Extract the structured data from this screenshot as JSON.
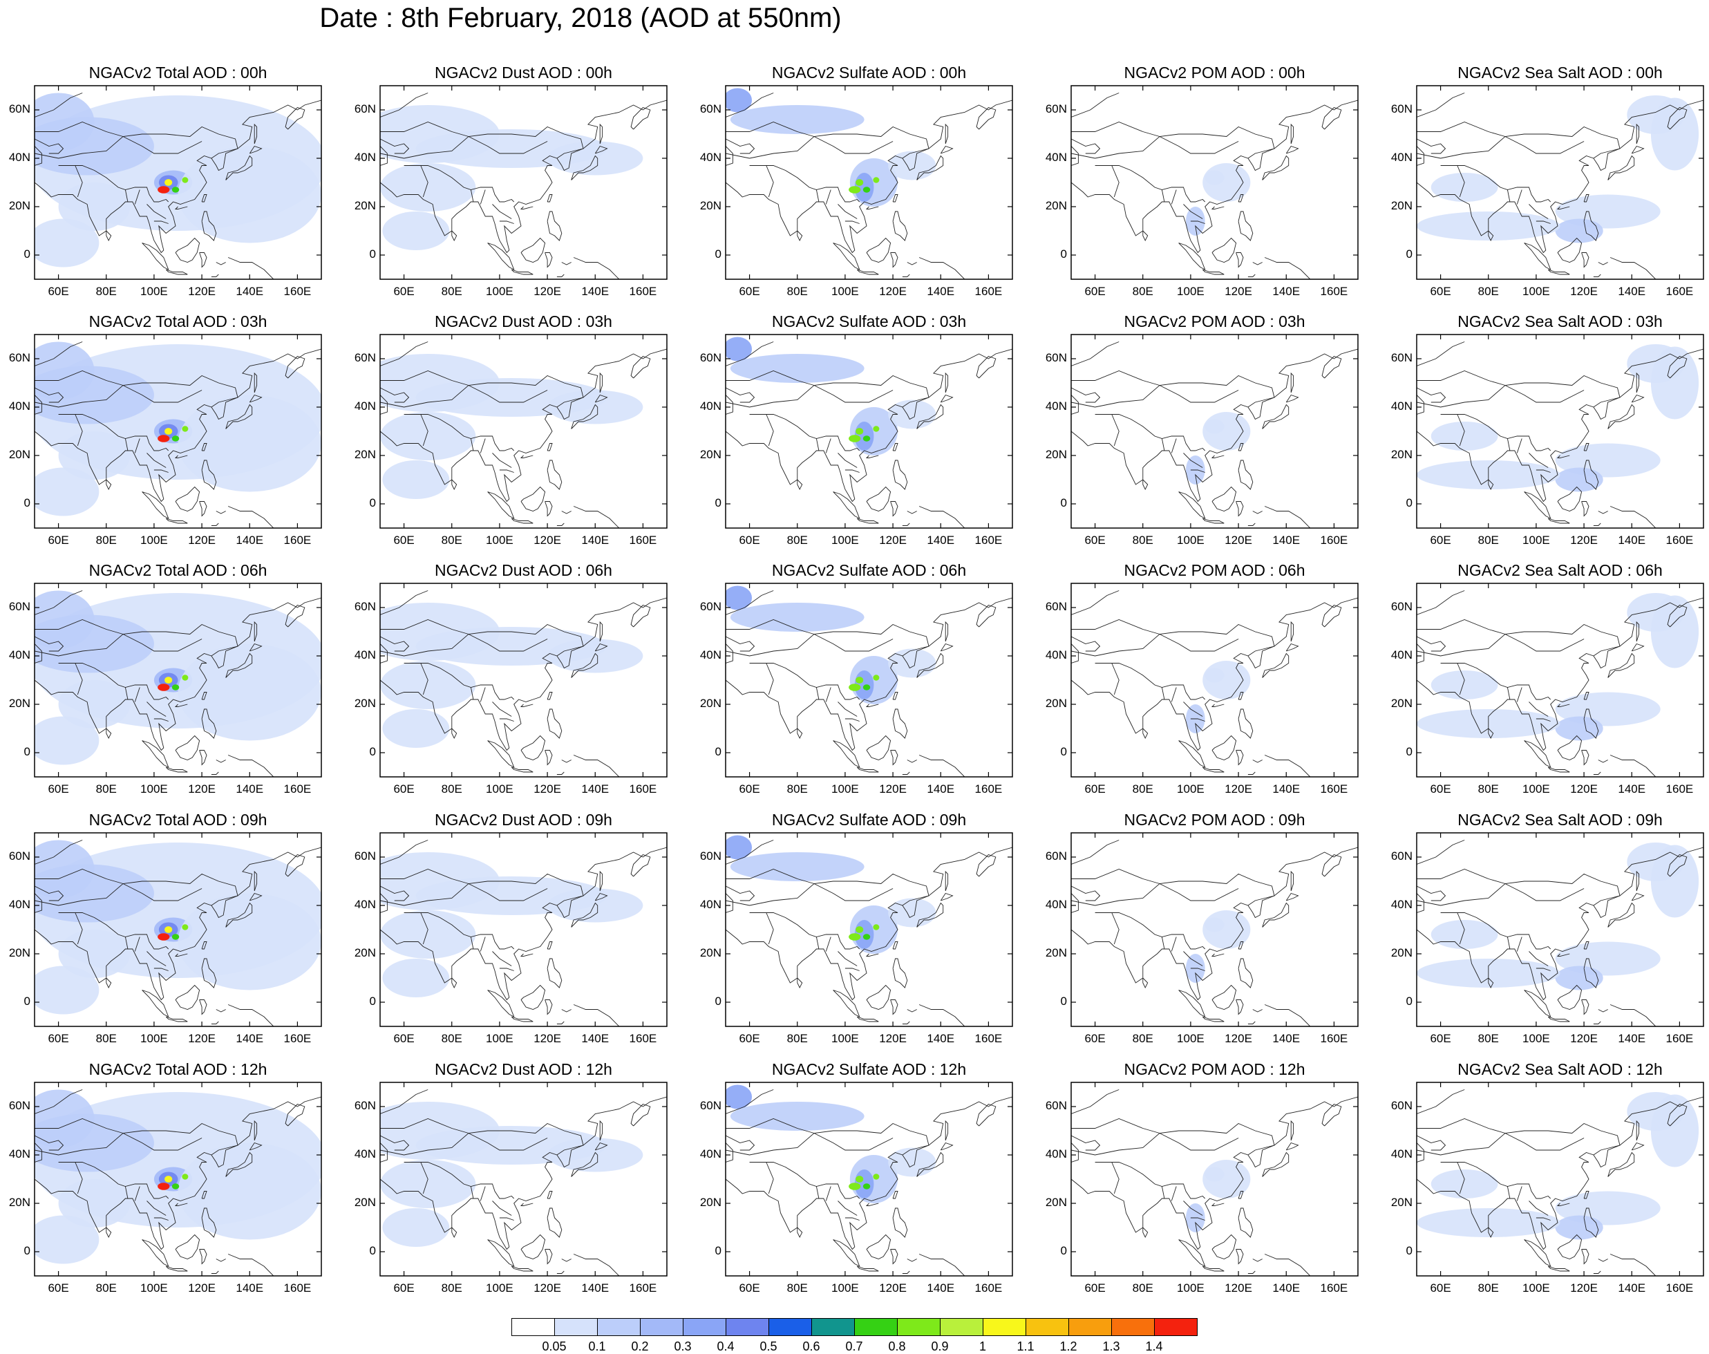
{
  "figure": {
    "title": "Date : 8th February, 2018 (AOD at 550nm)"
  },
  "panels": {
    "rows": [
      {
        "time": "00h",
        "columns": [
          {
            "variable": "total",
            "title": "NGACv2 Total AOD : 00h"
          },
          {
            "variable": "dust",
            "title": "NGACv2 Dust AOD : 00h"
          },
          {
            "variable": "sulfate",
            "title": "NGACv2 Sulfate AOD : 00h"
          },
          {
            "variable": "pom",
            "title": "NGACv2 POM AOD : 00h"
          },
          {
            "variable": "seasalt",
            "title": "NGACv2 Sea Salt AOD : 00h"
          }
        ]
      },
      {
        "time": "03h",
        "columns": [
          {
            "variable": "total",
            "title": "NGACv2 Total AOD : 03h"
          },
          {
            "variable": "dust",
            "title": "NGACv2 Dust AOD : 03h"
          },
          {
            "variable": "sulfate",
            "title": "NGACv2 Sulfate AOD : 03h"
          },
          {
            "variable": "pom",
            "title": "NGACv2 POM AOD : 03h"
          },
          {
            "variable": "seasalt",
            "title": "NGACv2 Sea Salt AOD : 03h"
          }
        ]
      },
      {
        "time": "06h",
        "columns": [
          {
            "variable": "total",
            "title": "NGACv2 Total AOD : 06h"
          },
          {
            "variable": "dust",
            "title": "NGACv2 Dust AOD : 06h"
          },
          {
            "variable": "sulfate",
            "title": "NGACv2 Sulfate AOD : 06h"
          },
          {
            "variable": "pom",
            "title": "NGACv2 POM AOD : 06h"
          },
          {
            "variable": "seasalt",
            "title": "NGACv2 Sea Salt AOD : 06h"
          }
        ]
      },
      {
        "time": "09h",
        "columns": [
          {
            "variable": "total",
            "title": "NGACv2 Total AOD : 09h"
          },
          {
            "variable": "dust",
            "title": "NGACv2 Dust AOD : 09h"
          },
          {
            "variable": "sulfate",
            "title": "NGACv2 Sulfate AOD : 09h"
          },
          {
            "variable": "pom",
            "title": "NGACv2 POM AOD : 09h"
          },
          {
            "variable": "seasalt",
            "title": "NGACv2 Sea Salt  AOD : 09h"
          }
        ]
      },
      {
        "time": "12h",
        "columns": [
          {
            "variable": "total",
            "title": "NGACv2 Total AOD  : 12h"
          },
          {
            "variable": "dust",
            "title": "NGACv2 Dust AOD : 12h"
          },
          {
            "variable": "sulfate",
            "title": "NGACv2 Sulfate AOD : 12h"
          },
          {
            "variable": "pom",
            "title": "NGACv2 POM  AOD : 12h"
          },
          {
            "variable": "seasalt",
            "title": "NGACv2 Sea Salt  AOD : 12h"
          }
        ]
      }
    ],
    "lat_ticks": [
      "60N",
      "40N",
      "20N",
      "0"
    ],
    "lon_ticks": [
      "60E",
      "80E",
      "100E",
      "120E",
      "140E",
      "160E"
    ],
    "lat_range": [
      -10,
      70
    ],
    "lon_range": [
      50,
      170
    ]
  },
  "colorbar": {
    "labels": [
      "0.05",
      "0.1",
      "0.2",
      "0.3",
      "0.4",
      "0.5",
      "0.6",
      "0.7",
      "0.8",
      "0.9",
      "1",
      "1.1",
      "1.2",
      "1.3",
      "1.4"
    ],
    "colors": [
      "#ffffff",
      "#d6e2fb",
      "#bccefa",
      "#a3b9f8",
      "#8aa5f6",
      "#6e84ef",
      "#1a5fe8",
      "#11958e",
      "#35d114",
      "#7ee91a",
      "#b9f03b",
      "#f8f71b",
      "#f8c20f",
      "#f89e0d",
      "#f8700c",
      "#f4220e"
    ]
  }
}
